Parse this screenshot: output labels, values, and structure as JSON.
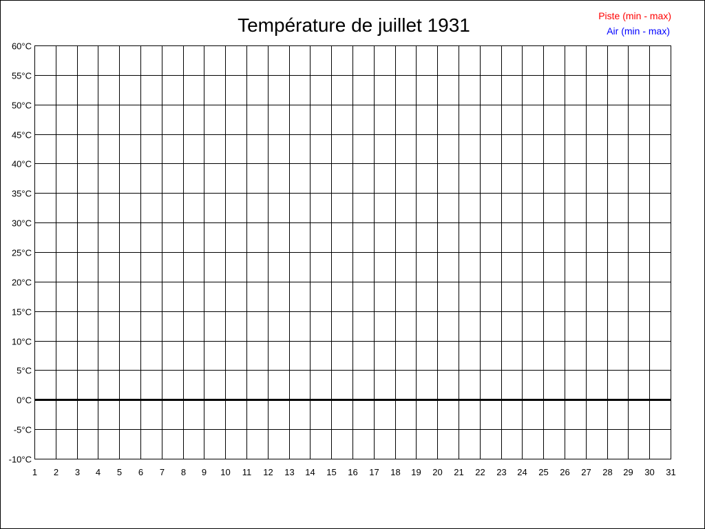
{
  "chart_data": {
    "type": "line",
    "title": "Température de juillet 1931",
    "xlabel": "",
    "ylabel": "",
    "x_ticks": [
      "1",
      "2",
      "3",
      "4",
      "5",
      "6",
      "7",
      "8",
      "9",
      "10",
      "11",
      "12",
      "13",
      "14",
      "15",
      "16",
      "17",
      "18",
      "19",
      "20",
      "21",
      "22",
      "23",
      "24",
      "25",
      "26",
      "27",
      "28",
      "29",
      "30",
      "31"
    ],
    "y_ticks": [
      "-10°C",
      "-5°C",
      "0°C",
      "5°C",
      "10°C",
      "15°C",
      "20°C",
      "25°C",
      "30°C",
      "35°C",
      "40°C",
      "45°C",
      "50°C",
      "55°C",
      "60°C"
    ],
    "xlim": [
      1,
      31
    ],
    "ylim": [
      -10,
      60
    ],
    "y_unit": "°C",
    "grid": true,
    "zero_line": true,
    "legend_position": "top-right",
    "series": [
      {
        "name": "Piste (min - max)",
        "color": "#ff0000",
        "values": []
      },
      {
        "name": "Air (min - max)",
        "color": "#0000ff",
        "values": []
      }
    ]
  }
}
